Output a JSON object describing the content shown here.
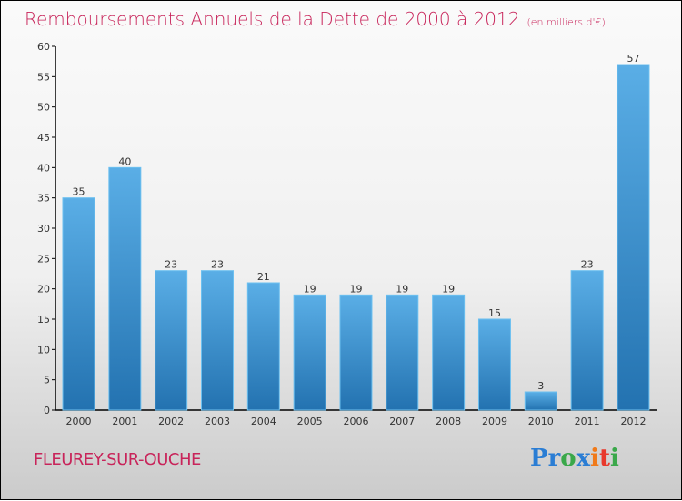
{
  "chart_data": {
    "type": "bar",
    "title": "Remboursements Annuels de la Dette de 2000 à 2012",
    "unit": "(en milliers d'€)",
    "categories": [
      "2000",
      "2001",
      "2002",
      "2003",
      "2004",
      "2005",
      "2006",
      "2007",
      "2008",
      "2009",
      "2010",
      "2011",
      "2012"
    ],
    "values": [
      35,
      40,
      23,
      23,
      21,
      19,
      19,
      19,
      19,
      15,
      3,
      23,
      57
    ],
    "ylim": [
      0,
      60
    ],
    "yticks": [
      0,
      5,
      10,
      15,
      20,
      25,
      30,
      35,
      40,
      45,
      50,
      55,
      60
    ],
    "xlabel": "",
    "ylabel": "",
    "grid": false,
    "bar_color": "#3a8fd0"
  },
  "city": "FLEUREY-SUR-OUCHE",
  "logo": {
    "letters": [
      "P",
      "r",
      "o",
      "x",
      "i",
      "t",
      "i"
    ],
    "colors": [
      "#2a7dd4",
      "#2a7dd4",
      "#3aa84a",
      "#2a7dd4",
      "#f07a1a",
      "#e8392c",
      "#3aa84a"
    ]
  }
}
